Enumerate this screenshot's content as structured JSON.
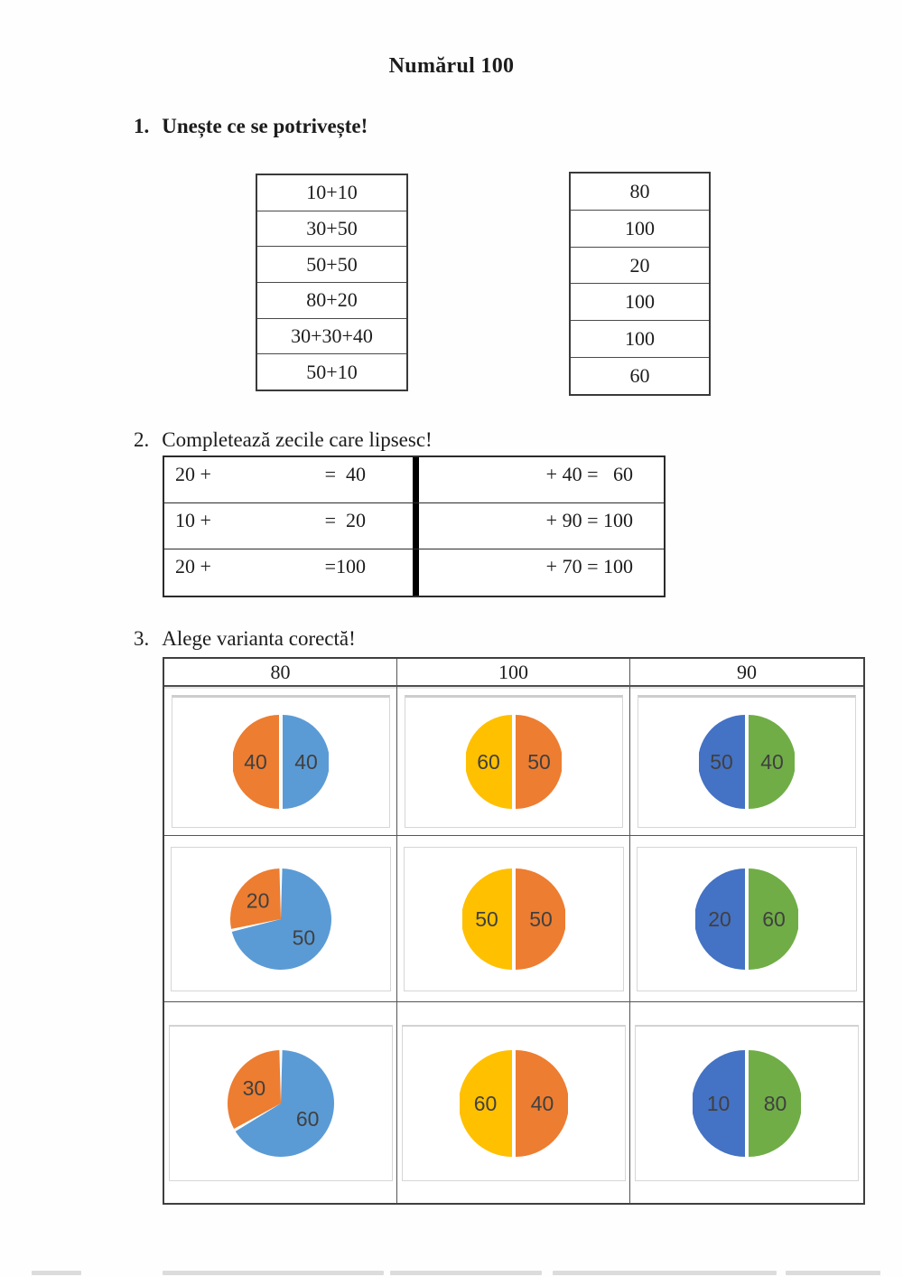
{
  "title": "Numărul 100",
  "exercise1": {
    "number": "1.",
    "prompt": "Unește ce se potrivește!",
    "left_column": [
      "10+10",
      "30+50",
      "50+50",
      "80+20",
      "30+30+40",
      "50+10"
    ],
    "right_column": [
      "80",
      "100",
      "20",
      "100",
      "100",
      "60"
    ]
  },
  "exercise2": {
    "number": "2.",
    "prompt": "Completează zecile care lipsesc!",
    "rows": [
      {
        "left_start": "20 +",
        "left_end": "=  40",
        "right": "+ 40 =   60"
      },
      {
        "left_start": "10 +",
        "left_end": "=  20",
        "right": "+ 90 = 100"
      },
      {
        "left_start": "20 +",
        "left_end": "=100",
        "right": "+ 70 = 100"
      }
    ]
  },
  "exercise3": {
    "number": "3.",
    "prompt": "Alege varianta corectă!",
    "column_headers": [
      "80",
      "100",
      "90"
    ]
  },
  "chart_data": [
    {
      "type": "pie",
      "grid_position": "row1-col1",
      "style": "equal-halves",
      "left": {
        "label": "40",
        "value": 40,
        "color": "#ED7D31"
      },
      "right": {
        "label": "40",
        "value": 40,
        "color": "#5B9BD5"
      }
    },
    {
      "type": "pie",
      "grid_position": "row1-col2",
      "style": "equal-halves",
      "left": {
        "label": "60",
        "value": 60,
        "color": "#FFC000"
      },
      "right": {
        "label": "50",
        "value": 50,
        "color": "#ED7D31"
      }
    },
    {
      "type": "pie",
      "grid_position": "row1-col3",
      "style": "equal-halves",
      "left": {
        "label": "50",
        "value": 50,
        "color": "#4472C4"
      },
      "right": {
        "label": "40",
        "value": 40,
        "color": "#70AD47"
      }
    },
    {
      "type": "pie",
      "grid_position": "row2-col1",
      "style": "proportional",
      "slices": [
        {
          "label": "50",
          "value": 50,
          "color": "#5B9BD5"
        },
        {
          "label": "20",
          "value": 20,
          "color": "#ED7D31"
        }
      ]
    },
    {
      "type": "pie",
      "grid_position": "row2-col2",
      "style": "equal-halves",
      "left": {
        "label": "50",
        "value": 50,
        "color": "#FFC000"
      },
      "right": {
        "label": "50",
        "value": 50,
        "color": "#ED7D31"
      }
    },
    {
      "type": "pie",
      "grid_position": "row2-col3",
      "style": "equal-halves",
      "left": {
        "label": "20",
        "value": 20,
        "color": "#4472C4"
      },
      "right": {
        "label": "60",
        "value": 60,
        "color": "#70AD47"
      }
    },
    {
      "type": "pie",
      "grid_position": "row3-col1",
      "style": "proportional",
      "slices": [
        {
          "label": "60",
          "value": 60,
          "color": "#5B9BD5"
        },
        {
          "label": "30",
          "value": 30,
          "color": "#ED7D31"
        }
      ]
    },
    {
      "type": "pie",
      "grid_position": "row3-col2",
      "style": "equal-halves",
      "left": {
        "label": "60",
        "value": 60,
        "color": "#FFC000"
      },
      "right": {
        "label": "40",
        "value": 40,
        "color": "#ED7D31"
      }
    },
    {
      "type": "pie",
      "grid_position": "row3-col3",
      "style": "equal-halves",
      "left": {
        "label": "10",
        "value": 10,
        "color": "#4472C4"
      },
      "right": {
        "label": "80",
        "value": 80,
        "color": "#70AD47"
      }
    }
  ],
  "pie_label_color": "#404040"
}
